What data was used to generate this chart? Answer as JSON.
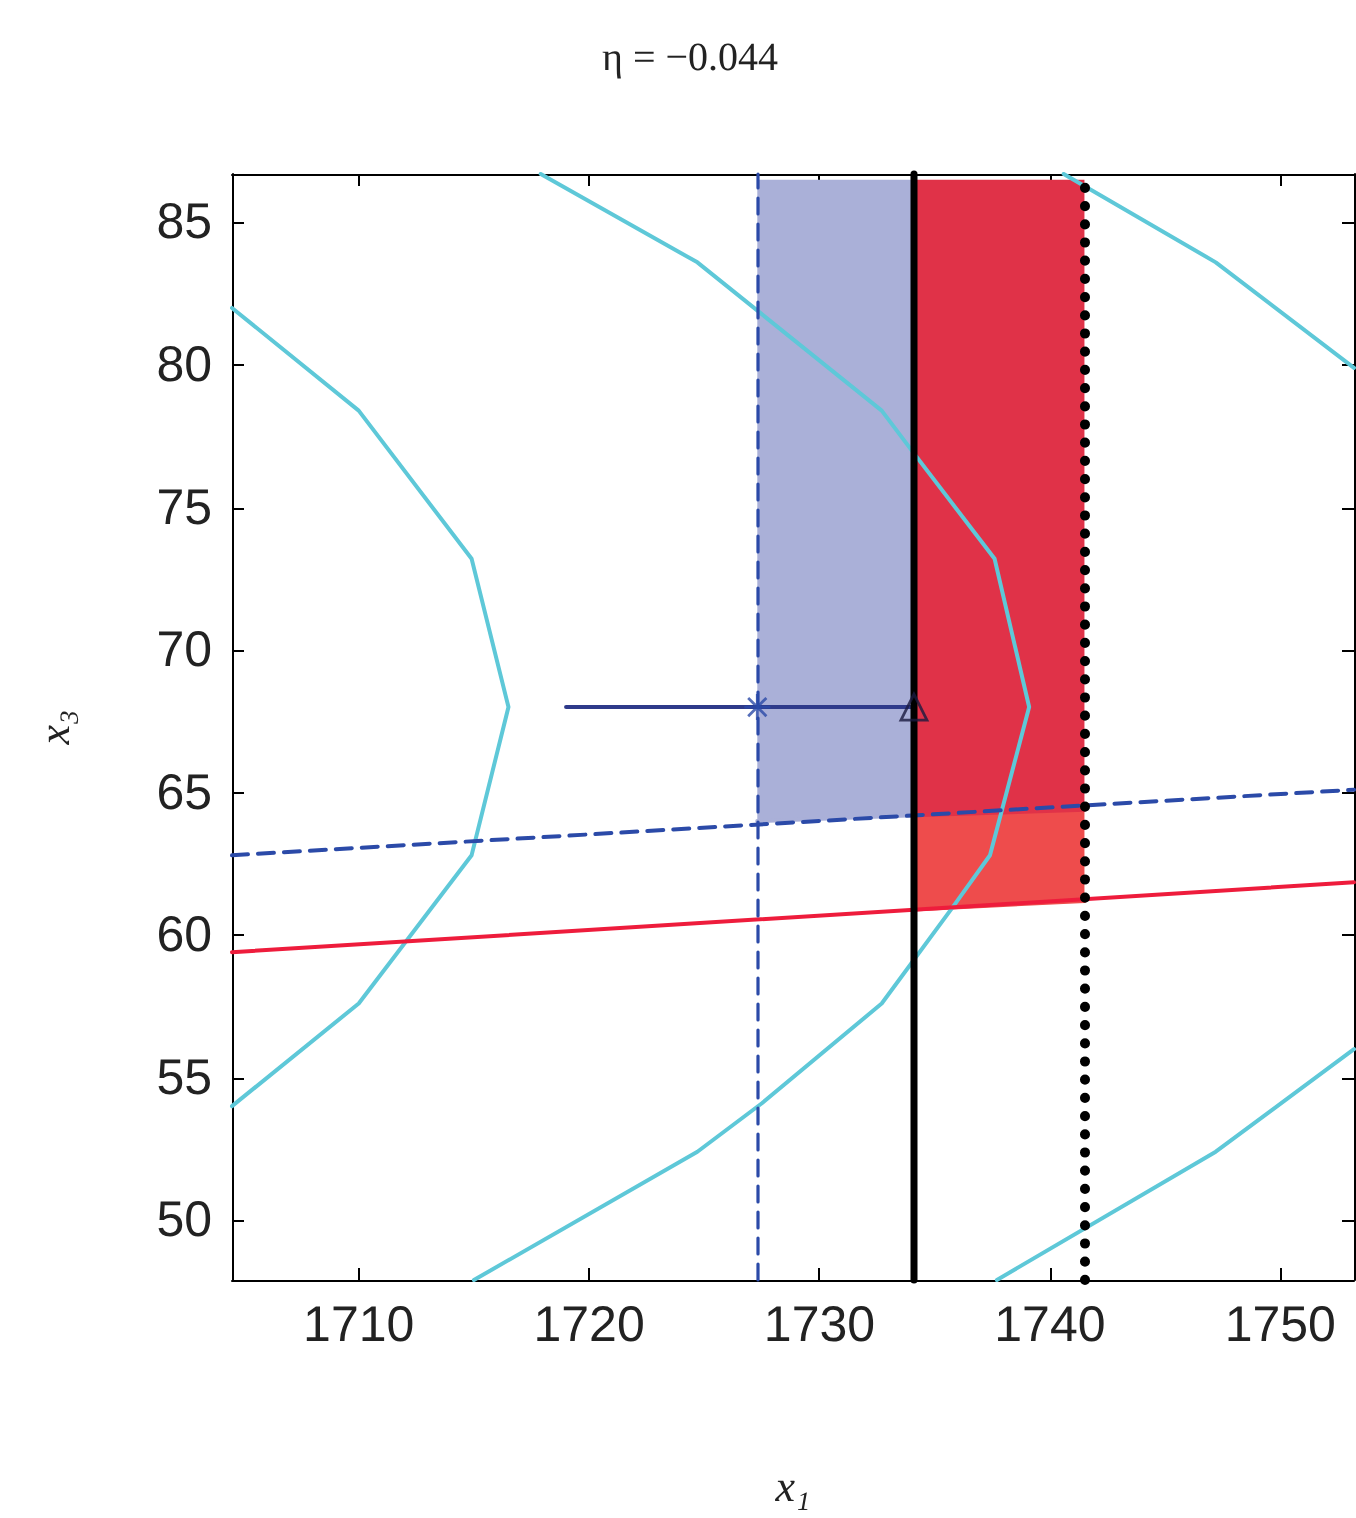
{
  "chart_data": {
    "type": "line",
    "title": "η = −0.044",
    "xlabel": "x₁",
    "ylabel": "x₃",
    "xlim": [
      1704.5,
      1753.2
    ],
    "ylim": [
      47.9,
      86.7
    ],
    "xticks": [
      1710,
      1720,
      1730,
      1740,
      1750
    ],
    "yticks": [
      50,
      55,
      60,
      65,
      70,
      75,
      80,
      85
    ],
    "grid": false,
    "marker": "none",
    "series": [
      {
        "type": "line",
        "color": "#aab0d8",
        "x": [
          1727.3,
          1734.1
        ],
        "values": [
          64.0,
          64.2
        ],
        "lower": [
          64.0,
          64.2
        ],
        "upper": [
          86.5,
          86.5
        ]
      },
      {
        "type": "line",
        "color": "#e03248",
        "x": [
          1734.1,
          1741.5
        ],
        "values": [
          64.2,
          64.4
        ],
        "lower": [
          64.2,
          64.4
        ],
        "upper": [
          86.5,
          86.5
        ]
      },
      {
        "type": "line",
        "color": "#ee4c4c",
        "x": [
          1734.1,
          1741.5
        ],
        "values": [
          60.9,
          61.2
        ],
        "lower": [
          60.9,
          61.2
        ],
        "upper": [
          64.2,
          64.4
        ]
      },
      {
        "type": "line",
        "color": "#5ec8d8",
        "x": [
          1704.5,
          1710,
          1714.9,
          1716.5,
          1714.9,
          1710,
          1704.5
        ],
        "values": [
          82.0,
          78.4,
          73.2,
          68.0,
          62.8,
          57.6,
          54.0
        ]
      },
      {
        "type": "line",
        "color": "#5ec8d8",
        "x": [
          1717.9,
          1724.7,
          1732.7,
          1734.1,
          1737.6,
          1739.1,
          1737.4,
          1735.8,
          1732.7,
          1727.5,
          1724.7,
          1715.0
        ],
        "values": [
          86.7,
          83.6,
          78.4,
          76.9,
          73.2,
          68.0,
          62.8,
          61.0,
          57.6,
          54.1,
          52.4,
          47.9
        ]
      },
      {
        "type": "line",
        "color": "#5ec8d8",
        "x": [
          1740.6,
          1747.2,
          1753.2
        ],
        "values": [
          86.7,
          83.6,
          79.9
        ]
      },
      {
        "type": "line",
        "color": "#5ec8d8",
        "x": [
          1737.7,
          1747.2,
          1753.2
        ],
        "values": [
          47.9,
          52.4,
          56.0
        ]
      },
      {
        "type": "line",
        "color": "#2b4aa8",
        "line_style": "dashed",
        "x": [
          1704.5,
          1753.2
        ],
        "values": [
          62.8,
          65.1
        ]
      },
      {
        "color": "#ee1c3c",
        "x": [
          1704.5,
          1753.2
        ],
        "values": [
          59.4,
          61.85
        ]
      },
      {
        "type": "line",
        "color": "#2e3a8a",
        "x": [
          1719.0,
          1734.1
        ],
        "values": [
          68.0,
          68.0
        ]
      },
      {
        "type": "scatter",
        "marker": "cross",
        "color": "#2b4aa8",
        "x": [
          1727.3
        ],
        "values": [
          68.0
        ]
      },
      {
        "type": "scatter",
        "marker": "triangle",
        "color": "#1a1a40",
        "x": [
          1734.1
        ],
        "values": [
          68.0
        ]
      }
    ],
    "ref_lines": [
      {
        "axis": "x",
        "value": 1727.3,
        "color": "#2b4aa8",
        "line_style": "dashed"
      },
      {
        "axis": "x",
        "value": 1734.1,
        "color": "#000000",
        "line_style": "solid"
      },
      {
        "axis": "x",
        "value": 1741.5,
        "color": "#000000",
        "line_style": "dotted"
      }
    ]
  }
}
